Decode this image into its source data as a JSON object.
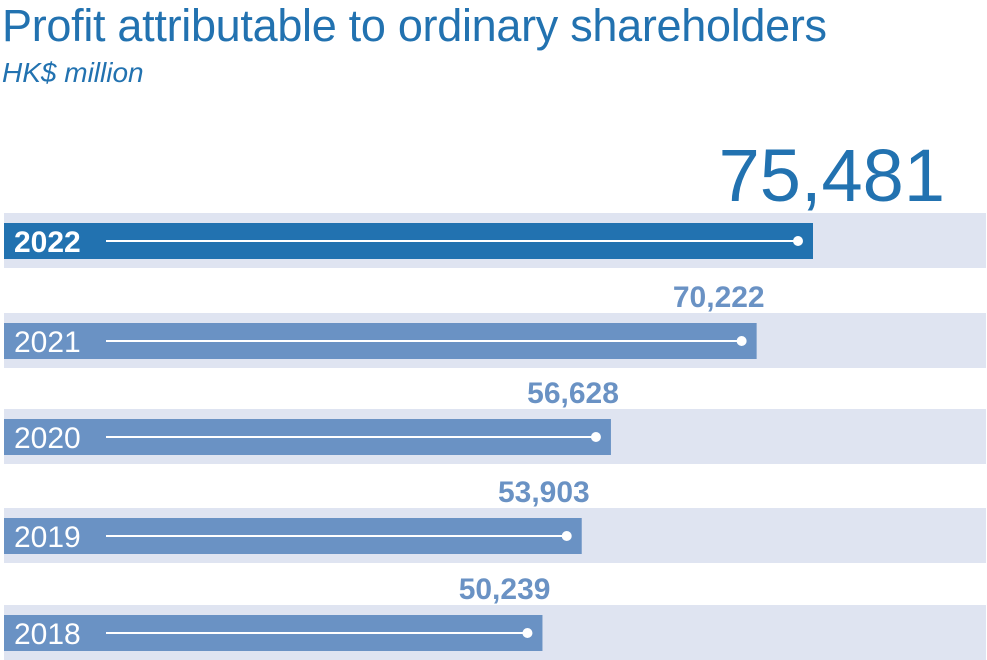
{
  "chart_data": {
    "type": "bar",
    "orientation": "horizontal",
    "title": "Profit attributable to ordinary shareholders",
    "subtitle": "HK$ million",
    "categories": [
      "2022",
      "2021",
      "2020",
      "2019",
      "2018"
    ],
    "values": [
      75481,
      70222,
      56628,
      53903,
      50239
    ],
    "value_labels": [
      "75,481",
      "70,222",
      "56,628",
      "53,903",
      "50,239"
    ],
    "highlight": "2022",
    "grid": false,
    "legend": "none"
  },
  "colors": {
    "title": "#2272b0",
    "highlight_bar": "#2272b0",
    "bar": "#6a92c4",
    "track": "#dfe4f1",
    "highlight_value": "#2272b0",
    "value": "#6a92c4",
    "line": "#ffffff"
  }
}
